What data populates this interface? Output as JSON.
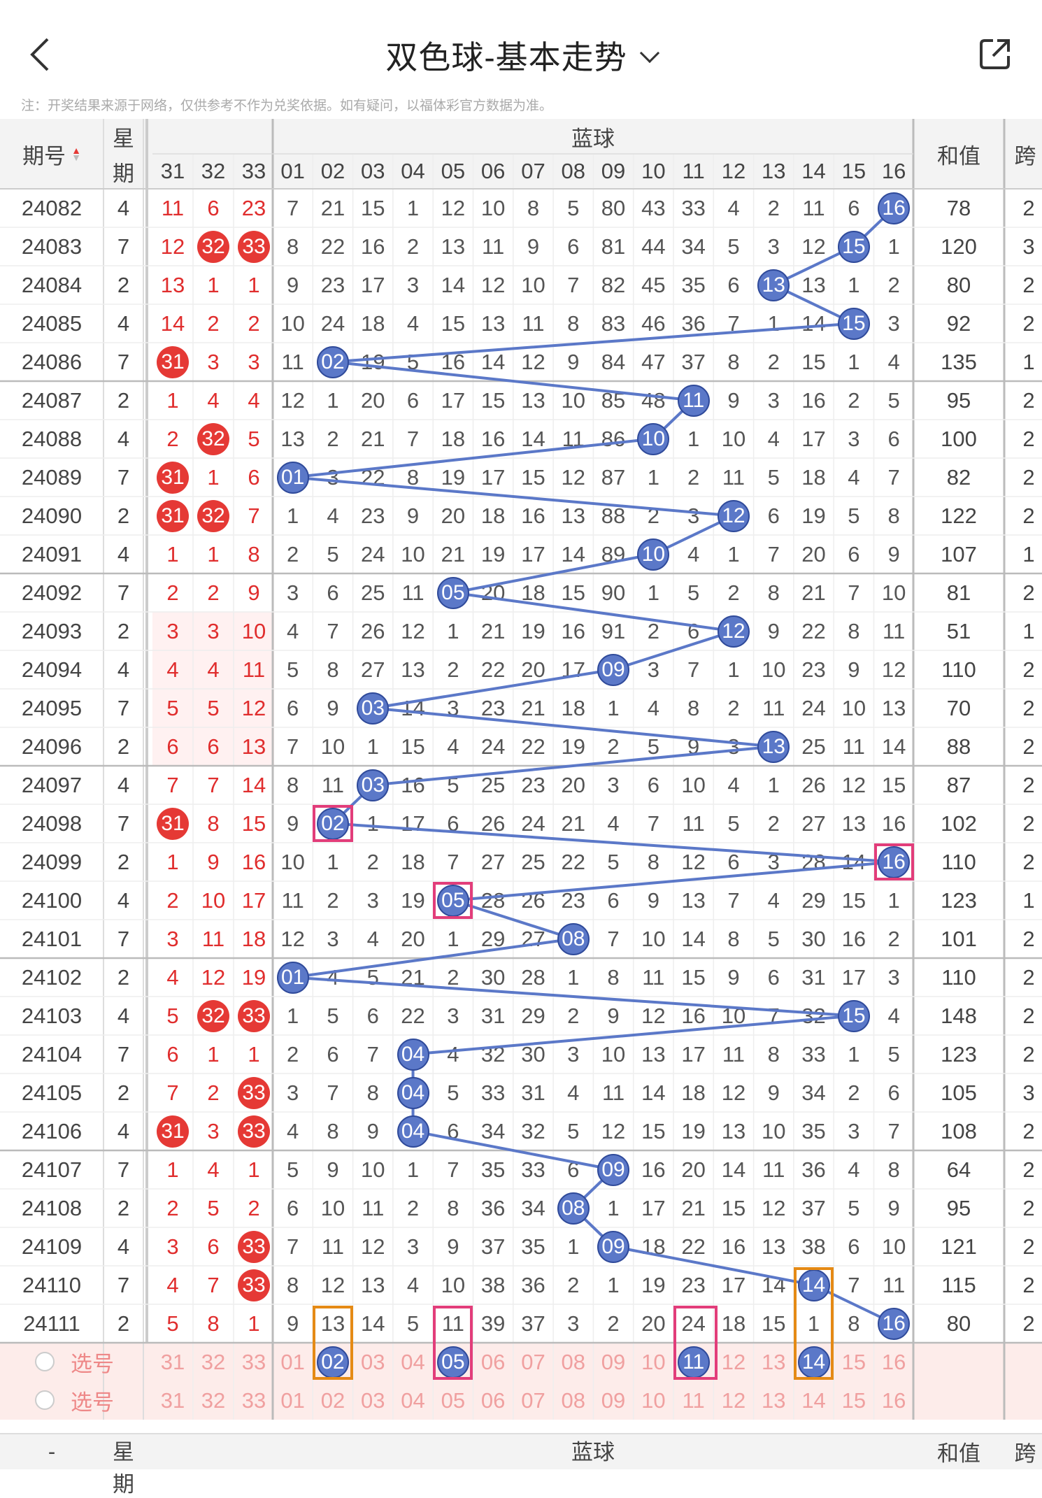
{
  "header": {
    "title": "双色球-基本走势",
    "note": "注：开奖结果来源于网络，仅供参考不作为兑奖依据。如有疑问，以福体彩官方数据为准。"
  },
  "colors": {
    "red": "#e53935",
    "blue_ball": "#5b78c8",
    "line": "#5b78c8",
    "pink_box": "#e23d7a",
    "orange_box": "#e58a15",
    "select_row_bg": "#fdecea"
  },
  "table_header": {
    "issue": "期号",
    "week_1": "星",
    "week_2": "期",
    "blue_group": "蓝球",
    "sum": "和值",
    "span": "跨",
    "red_cols": [
      "31",
      "32",
      "33"
    ],
    "blue_cols": [
      "01",
      "02",
      "03",
      "04",
      "05",
      "06",
      "07",
      "08",
      "09",
      "10",
      "11",
      "12",
      "13",
      "14",
      "15",
      "16"
    ]
  },
  "rows": [
    {
      "id": "24082",
      "w": "4",
      "r": [
        "11",
        "6",
        "23"
      ],
      "rb": [
        0,
        0,
        0
      ],
      "b": [
        "7",
        "21",
        "15",
        "1",
        "12",
        "10",
        "8",
        "5",
        "80",
        "43",
        "33",
        "4",
        "2",
        "11",
        "6",
        "16"
      ],
      "bb": 16,
      "sum": "78",
      "span": "2"
    },
    {
      "id": "24083",
      "w": "7",
      "r": [
        "12",
        "32",
        "33"
      ],
      "rb": [
        0,
        1,
        1
      ],
      "b": [
        "8",
        "22",
        "16",
        "2",
        "13",
        "11",
        "9",
        "6",
        "81",
        "44",
        "34",
        "5",
        "3",
        "12",
        "15",
        "1"
      ],
      "bb": 15,
      "sum": "120",
      "span": "3"
    },
    {
      "id": "24084",
      "w": "2",
      "r": [
        "13",
        "1",
        "1"
      ],
      "rb": [
        0,
        0,
        0
      ],
      "b": [
        "9",
        "23",
        "17",
        "3",
        "14",
        "12",
        "10",
        "7",
        "82",
        "45",
        "35",
        "6",
        "13",
        "13",
        "1",
        "2"
      ],
      "bb": 13,
      "sum": "80",
      "span": "2"
    },
    {
      "id": "24085",
      "w": "4",
      "r": [
        "14",
        "2",
        "2"
      ],
      "rb": [
        0,
        0,
        0
      ],
      "b": [
        "10",
        "24",
        "18",
        "4",
        "15",
        "13",
        "11",
        "8",
        "83",
        "46",
        "36",
        "7",
        "1",
        "14",
        "15",
        "3"
      ],
      "bb": 15,
      "sum": "92",
      "span": "2"
    },
    {
      "id": "24086",
      "w": "7",
      "r": [
        "31",
        "3",
        "3"
      ],
      "rb": [
        1,
        0,
        0
      ],
      "b": [
        "11",
        "02",
        "19",
        "5",
        "16",
        "14",
        "12",
        "9",
        "84",
        "47",
        "37",
        "8",
        "2",
        "15",
        "1",
        "4"
      ],
      "bb": 2,
      "sum": "135",
      "span": "1"
    },
    {
      "id": "24087",
      "w": "2",
      "r": [
        "1",
        "4",
        "4"
      ],
      "rb": [
        0,
        0,
        0
      ],
      "b": [
        "12",
        "1",
        "20",
        "6",
        "17",
        "15",
        "13",
        "10",
        "85",
        "48",
        "11",
        "9",
        "3",
        "16",
        "2",
        "5"
      ],
      "bb": 11,
      "sum": "95",
      "span": "2"
    },
    {
      "id": "24088",
      "w": "4",
      "r": [
        "2",
        "32",
        "5"
      ],
      "rb": [
        0,
        1,
        0
      ],
      "b": [
        "13",
        "2",
        "21",
        "7",
        "18",
        "16",
        "14",
        "11",
        "86",
        "10",
        "1",
        "10",
        "4",
        "17",
        "3",
        "6"
      ],
      "bb": 10,
      "sum": "100",
      "span": "2"
    },
    {
      "id": "24089",
      "w": "7",
      "r": [
        "31",
        "1",
        "6"
      ],
      "rb": [
        1,
        0,
        0
      ],
      "b": [
        "01",
        "3",
        "22",
        "8",
        "19",
        "17",
        "15",
        "12",
        "87",
        "1",
        "2",
        "11",
        "5",
        "18",
        "4",
        "7"
      ],
      "bb": 1,
      "sum": "82",
      "span": "2"
    },
    {
      "id": "24090",
      "w": "2",
      "r": [
        "31",
        "32",
        "7"
      ],
      "rb": [
        1,
        1,
        0
      ],
      "b": [
        "1",
        "4",
        "23",
        "9",
        "20",
        "18",
        "16",
        "13",
        "88",
        "2",
        "3",
        "12",
        "6",
        "19",
        "5",
        "8"
      ],
      "bb": 12,
      "sum": "122",
      "span": "2"
    },
    {
      "id": "24091",
      "w": "4",
      "r": [
        "1",
        "1",
        "8"
      ],
      "rb": [
        0,
        0,
        0
      ],
      "b": [
        "2",
        "5",
        "24",
        "10",
        "21",
        "19",
        "17",
        "14",
        "89",
        "10",
        "4",
        "1",
        "7",
        "20",
        "6",
        "9"
      ],
      "bb": 10,
      "sum": "107",
      "span": "1"
    },
    {
      "id": "24092",
      "w": "7",
      "r": [
        "2",
        "2",
        "9"
      ],
      "rb": [
        0,
        0,
        0
      ],
      "b": [
        "3",
        "6",
        "25",
        "11",
        "05",
        "20",
        "18",
        "15",
        "90",
        "1",
        "5",
        "2",
        "8",
        "21",
        "7",
        "10"
      ],
      "bb": 5,
      "sum": "81",
      "span": "2"
    },
    {
      "id": "24093",
      "w": "2",
      "r": [
        "3",
        "3",
        "10"
      ],
      "rb": [
        0,
        0,
        0
      ],
      "b": [
        "4",
        "7",
        "26",
        "12",
        "1",
        "21",
        "19",
        "16",
        "91",
        "2",
        "6",
        "12",
        "9",
        "22",
        "8",
        "11"
      ],
      "bb": 12,
      "sum": "51",
      "span": "1"
    },
    {
      "id": "24094",
      "w": "4",
      "r": [
        "4",
        "4",
        "11"
      ],
      "rb": [
        0,
        0,
        0
      ],
      "b": [
        "5",
        "8",
        "27",
        "13",
        "2",
        "22",
        "20",
        "17",
        "09",
        "3",
        "7",
        "1",
        "10",
        "23",
        "9",
        "12"
      ],
      "bb": 9,
      "sum": "110",
      "span": "2"
    },
    {
      "id": "24095",
      "w": "7",
      "r": [
        "5",
        "5",
        "12"
      ],
      "rb": [
        0,
        0,
        0
      ],
      "b": [
        "6",
        "9",
        "03",
        "14",
        "3",
        "23",
        "21",
        "18",
        "1",
        "4",
        "8",
        "2",
        "11",
        "24",
        "10",
        "13"
      ],
      "bb": 3,
      "sum": "70",
      "span": "2"
    },
    {
      "id": "24096",
      "w": "2",
      "r": [
        "6",
        "6",
        "13"
      ],
      "rb": [
        0,
        0,
        0
      ],
      "b": [
        "7",
        "10",
        "1",
        "15",
        "4",
        "24",
        "22",
        "19",
        "2",
        "5",
        "9",
        "3",
        "13",
        "25",
        "11",
        "14"
      ],
      "bb": 13,
      "sum": "88",
      "span": "2"
    },
    {
      "id": "24097",
      "w": "4",
      "r": [
        "7",
        "7",
        "14"
      ],
      "rb": [
        0,
        0,
        0
      ],
      "b": [
        "8",
        "11",
        "03",
        "16",
        "5",
        "25",
        "23",
        "20",
        "3",
        "6",
        "10",
        "4",
        "1",
        "26",
        "12",
        "15"
      ],
      "bb": 3,
      "sum": "87",
      "span": "2"
    },
    {
      "id": "24098",
      "w": "7",
      "r": [
        "31",
        "8",
        "15"
      ],
      "rb": [
        1,
        0,
        0
      ],
      "b": [
        "9",
        "02",
        "1",
        "17",
        "6",
        "26",
        "24",
        "21",
        "4",
        "7",
        "11",
        "5",
        "2",
        "27",
        "13",
        "16"
      ],
      "bb": 2,
      "sum": "102",
      "span": "2"
    },
    {
      "id": "24099",
      "w": "2",
      "r": [
        "1",
        "9",
        "16"
      ],
      "rb": [
        0,
        0,
        0
      ],
      "b": [
        "10",
        "1",
        "2",
        "18",
        "7",
        "27",
        "25",
        "22",
        "5",
        "8",
        "12",
        "6",
        "3",
        "28",
        "14",
        "16"
      ],
      "bb": 16,
      "sum": "110",
      "span": "2"
    },
    {
      "id": "24100",
      "w": "4",
      "r": [
        "2",
        "10",
        "17"
      ],
      "rb": [
        0,
        0,
        0
      ],
      "b": [
        "11",
        "2",
        "3",
        "19",
        "05",
        "28",
        "26",
        "23",
        "6",
        "9",
        "13",
        "7",
        "4",
        "29",
        "15",
        "1"
      ],
      "bb": 5,
      "sum": "123",
      "span": "1"
    },
    {
      "id": "24101",
      "w": "7",
      "r": [
        "3",
        "11",
        "18"
      ],
      "rb": [
        0,
        0,
        0
      ],
      "b": [
        "12",
        "3",
        "4",
        "20",
        "1",
        "29",
        "27",
        "08",
        "7",
        "10",
        "14",
        "8",
        "5",
        "30",
        "16",
        "2"
      ],
      "bb": 8,
      "sum": "101",
      "span": "2"
    },
    {
      "id": "24102",
      "w": "2",
      "r": [
        "4",
        "12",
        "19"
      ],
      "rb": [
        0,
        0,
        0
      ],
      "b": [
        "01",
        "4",
        "5",
        "21",
        "2",
        "30",
        "28",
        "1",
        "8",
        "11",
        "15",
        "9",
        "6",
        "31",
        "17",
        "3"
      ],
      "bb": 1,
      "sum": "110",
      "span": "2"
    },
    {
      "id": "24103",
      "w": "4",
      "r": [
        "5",
        "32",
        "33"
      ],
      "rb": [
        0,
        1,
        1
      ],
      "b": [
        "1",
        "5",
        "6",
        "22",
        "3",
        "31",
        "29",
        "2",
        "9",
        "12",
        "16",
        "10",
        "7",
        "32",
        "15",
        "4"
      ],
      "bb": 15,
      "sum": "148",
      "span": "2"
    },
    {
      "id": "24104",
      "w": "7",
      "r": [
        "6",
        "1",
        "1"
      ],
      "rb": [
        0,
        0,
        0
      ],
      "b": [
        "2",
        "6",
        "7",
        "04",
        "4",
        "32",
        "30",
        "3",
        "10",
        "13",
        "17",
        "11",
        "8",
        "33",
        "1",
        "5"
      ],
      "bb": 4,
      "sum": "123",
      "span": "2"
    },
    {
      "id": "24105",
      "w": "2",
      "r": [
        "7",
        "2",
        "33"
      ],
      "rb": [
        0,
        0,
        1
      ],
      "b": [
        "3",
        "7",
        "8",
        "04",
        "5",
        "33",
        "31",
        "4",
        "11",
        "14",
        "18",
        "12",
        "9",
        "34",
        "2",
        "6"
      ],
      "bb": 4,
      "sum": "105",
      "span": "3"
    },
    {
      "id": "24106",
      "w": "4",
      "r": [
        "31",
        "3",
        "33"
      ],
      "rb": [
        1,
        0,
        1
      ],
      "b": [
        "4",
        "8",
        "9",
        "04",
        "6",
        "34",
        "32",
        "5",
        "12",
        "15",
        "19",
        "13",
        "10",
        "35",
        "3",
        "7"
      ],
      "bb": 4,
      "sum": "108",
      "span": "2"
    },
    {
      "id": "24107",
      "w": "7",
      "r": [
        "1",
        "4",
        "1"
      ],
      "rb": [
        0,
        0,
        0
      ],
      "b": [
        "5",
        "9",
        "10",
        "1",
        "7",
        "35",
        "33",
        "6",
        "09",
        "16",
        "20",
        "14",
        "11",
        "36",
        "4",
        "8"
      ],
      "bb": 9,
      "sum": "64",
      "span": "2"
    },
    {
      "id": "24108",
      "w": "2",
      "r": [
        "2",
        "5",
        "2"
      ],
      "rb": [
        0,
        0,
        0
      ],
      "b": [
        "6",
        "10",
        "11",
        "2",
        "8",
        "36",
        "34",
        "08",
        "1",
        "17",
        "21",
        "15",
        "12",
        "37",
        "5",
        "9"
      ],
      "bb": 8,
      "sum": "95",
      "span": "2"
    },
    {
      "id": "24109",
      "w": "4",
      "r": [
        "3",
        "6",
        "33"
      ],
      "rb": [
        0,
        0,
        1
      ],
      "b": [
        "7",
        "11",
        "12",
        "3",
        "9",
        "37",
        "35",
        "1",
        "09",
        "18",
        "22",
        "16",
        "13",
        "38",
        "6",
        "10"
      ],
      "bb": 9,
      "sum": "121",
      "span": "2"
    },
    {
      "id": "24110",
      "w": "7",
      "r": [
        "4",
        "7",
        "33"
      ],
      "rb": [
        0,
        0,
        1
      ],
      "b": [
        "8",
        "12",
        "13",
        "4",
        "10",
        "38",
        "36",
        "2",
        "1",
        "19",
        "23",
        "17",
        "14",
        "14",
        "7",
        "11"
      ],
      "bb": 14,
      "sum": "115",
      "span": "2"
    },
    {
      "id": "24111",
      "w": "2",
      "r": [
        "5",
        "8",
        "1"
      ],
      "rb": [
        0,
        0,
        0
      ],
      "b": [
        "9",
        "13",
        "14",
        "5",
        "11",
        "39",
        "37",
        "3",
        "2",
        "20",
        "24",
        "18",
        "15",
        "1",
        "8",
        "16"
      ],
      "bb": 16,
      "sum": "80",
      "span": "2"
    }
  ],
  "select_rows": [
    {
      "label": "选号",
      "r": [
        "31",
        "32",
        "33"
      ],
      "b": [
        "01",
        "02",
        "03",
        "04",
        "05",
        "06",
        "07",
        "08",
        "09",
        "10",
        "11",
        "12",
        "13",
        "14",
        "15",
        "16"
      ],
      "picked": [
        2,
        5,
        11,
        14
      ]
    },
    {
      "label": "选号",
      "r": [
        "31",
        "32",
        "33"
      ],
      "b": [
        "01",
        "02",
        "03",
        "04",
        "05",
        "06",
        "07",
        "08",
        "09",
        "10",
        "11",
        "12",
        "13",
        "14",
        "15",
        "16"
      ],
      "picked": []
    }
  ],
  "footer_header": {
    "issue": "-",
    "week_1": "星",
    "week_2": "期",
    "blue_group": "蓝球",
    "sum": "和值",
    "span": "跨"
  }
}
